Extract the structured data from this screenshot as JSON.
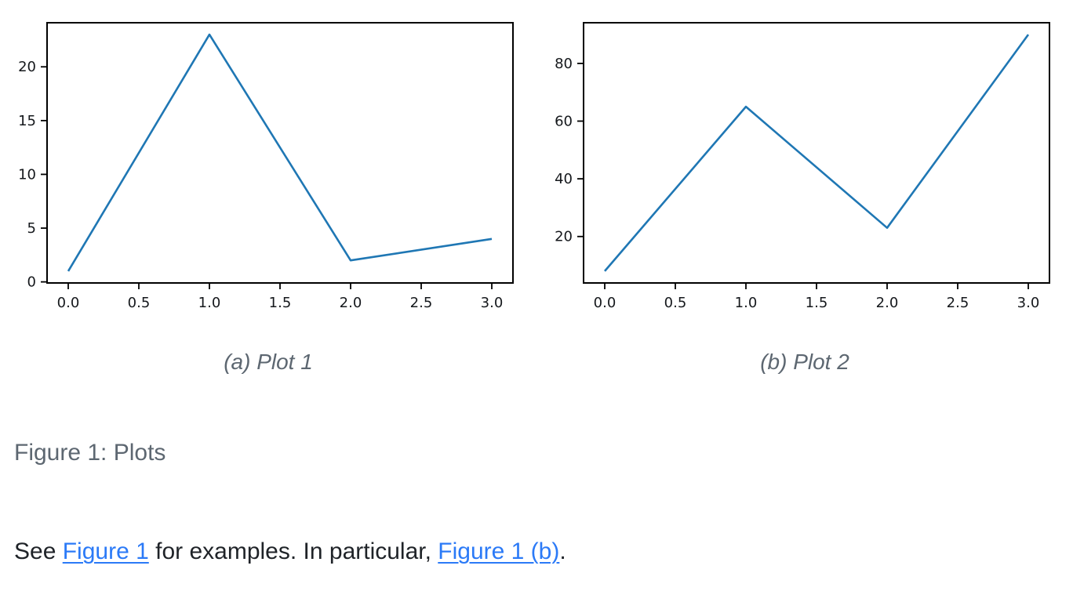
{
  "figure": {
    "label": "Figure 1: Plots",
    "subfigures": [
      {
        "caption": "(a) Plot 1"
      },
      {
        "caption": "(b) Plot 2"
      }
    ]
  },
  "paragraph": {
    "segments": [
      {
        "type": "text",
        "text": "See "
      },
      {
        "type": "link",
        "text": "Figure 1"
      },
      {
        "type": "text",
        "text": " for examples. In particular, "
      },
      {
        "type": "link",
        "text": "Figure 1 (b)"
      },
      {
        "type": "text",
        "text": "."
      }
    ]
  },
  "colors": {
    "chart_line": "#1f77b4",
    "link": "#2b7af7",
    "caption_gray": "#5d6771",
    "body_text": "#1f2328",
    "axes": "#000000"
  },
  "chart_data": [
    {
      "type": "line",
      "caption": "(a) Plot 1",
      "x": [
        0,
        1,
        2,
        3
      ],
      "y": [
        1,
        23,
        2,
        4
      ],
      "xlim": [
        -0.15,
        3.15
      ],
      "ylim": [
        -0.1,
        24.1
      ],
      "xtick_values": [
        0,
        0.5,
        1,
        1.5,
        2,
        2.5,
        3
      ],
      "xtick_labels": [
        "0.0",
        "0.5",
        "1.0",
        "1.5",
        "2.0",
        "2.5",
        "3.0"
      ],
      "ytick_values": [
        0,
        5,
        10,
        15,
        20
      ],
      "ytick_labels": [
        "0",
        "5",
        "10",
        "15",
        "20"
      ],
      "line_color": "#1f77b4",
      "grid": false,
      "legend": null,
      "title": "",
      "xlabel": "",
      "ylabel": ""
    },
    {
      "type": "line",
      "caption": "(b) Plot 2",
      "x": [
        0,
        1,
        2,
        3
      ],
      "y": [
        8,
        65,
        23,
        90
      ],
      "xlim": [
        -0.15,
        3.15
      ],
      "ylim": [
        3.9,
        94.1
      ],
      "xtick_values": [
        0,
        0.5,
        1,
        1.5,
        2,
        2.5,
        3
      ],
      "xtick_labels": [
        "0.0",
        "0.5",
        "1.0",
        "1.5",
        "2.0",
        "2.5",
        "3.0"
      ],
      "ytick_values": [
        20,
        40,
        60,
        80
      ],
      "ytick_labels": [
        "20",
        "40",
        "60",
        "80"
      ],
      "line_color": "#1f77b4",
      "grid": false,
      "legend": null,
      "title": "",
      "xlabel": "",
      "ylabel": ""
    }
  ]
}
